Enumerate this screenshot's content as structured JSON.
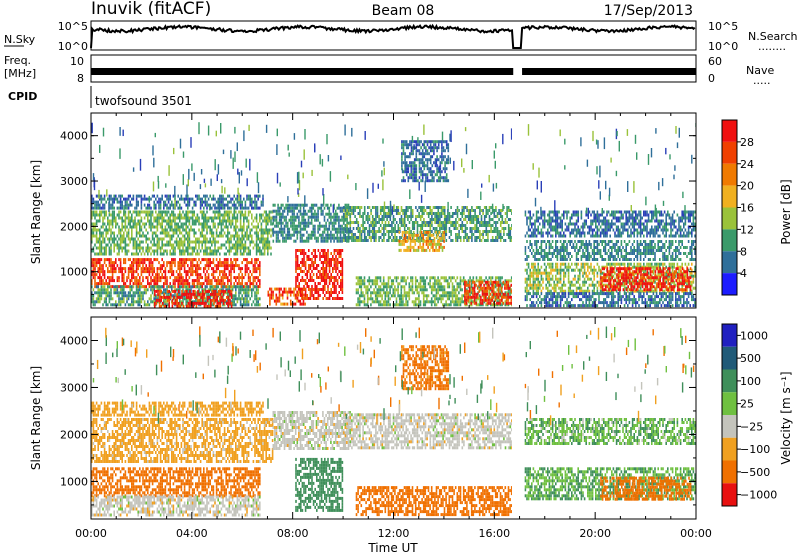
{
  "header": {
    "station": "Inuvik (fitACF)",
    "beam": "Beam 08",
    "date": "17/Sep/2013"
  },
  "top_panels": {
    "nsky": {
      "label": "N.Sky",
      "left_ticks": [
        "10^5",
        "10^0"
      ],
      "right_ticks": [
        "10^5",
        "10^0"
      ],
      "right_label": "N.Search",
      "right_label_dots": "........"
    },
    "freq": {
      "label_line1": "Freq.",
      "label_line2": "[MHz]",
      "left_ticks": [
        "10",
        "8"
      ],
      "right_ticks": [
        "60",
        "0"
      ],
      "right_label": "Nave",
      "right_label_dots": "....."
    },
    "cpid": {
      "label": "CPID",
      "value": "twofsound 3501"
    }
  },
  "panels": {
    "power": {
      "ylabel": "Slant Range [km]",
      "colorbar_label": "Power [dB]",
      "colorbar_ticks": [
        "28",
        "24",
        "20",
        "16",
        "12",
        "8",
        "4"
      ]
    },
    "velocity": {
      "ylabel": "Slant Range [km]",
      "colorbar_label": "Velocity [m s⁻¹]",
      "colorbar_ticks": [
        "1000",
        "500",
        "100",
        "25",
        "−25",
        "−100",
        "−500",
        "−1000"
      ]
    }
  },
  "chart_data": [
    {
      "type": "heatmap",
      "title": "Power",
      "x_unit": "hours UT",
      "y_unit": "km",
      "xlim": [
        0,
        24
      ],
      "ylim": [
        200,
        4500
      ],
      "xlabel": "",
      "ylabel": "Slant Range [km]",
      "x_ticks": [
        "00:00",
        "04:00",
        "08:00",
        "12:00",
        "16:00",
        "20:00",
        "00:00"
      ],
      "y_ticks": [
        1000,
        2000,
        3000,
        4000
      ],
      "colorbar": {
        "label": "Power [dB]",
        "ticks": [
          28,
          24,
          20,
          16,
          12,
          8,
          4
        ],
        "range": [
          0,
          30
        ]
      },
      "data_gap_hours": [
        16.7,
        17.2
      ],
      "regions": [
        {
          "x": [
            0,
            6.7
          ],
          "y": [
            700,
            1300
          ],
          "value": 26
        },
        {
          "x": [
            0,
            6.7
          ],
          "y": [
            300,
            700
          ],
          "value": 12
        },
        {
          "x": [
            2.5,
            5.6
          ],
          "y": [
            250,
            600
          ],
          "value": 28
        },
        {
          "x": [
            0,
            7.2
          ],
          "y": [
            1400,
            2350
          ],
          "value": 14
        },
        {
          "x": [
            0,
            6.8
          ],
          "y": [
            2400,
            2700
          ],
          "value": 8
        },
        {
          "x": [
            7.2,
            10.3
          ],
          "y": [
            1700,
            2500
          ],
          "value": 10
        },
        {
          "x": [
            8.1,
            10.0
          ],
          "y": [
            400,
            1500
          ],
          "value": 28
        },
        {
          "x": [
            7.0,
            8.5
          ],
          "y": [
            300,
            650
          ],
          "value": 25
        },
        {
          "x": [
            10.0,
            16.7
          ],
          "y": [
            1700,
            2450
          ],
          "value": 12
        },
        {
          "x": [
            12.2,
            14.0
          ],
          "y": [
            1500,
            1900
          ],
          "value": 20
        },
        {
          "x": [
            10.5,
            16.7
          ],
          "y": [
            300,
            900
          ],
          "value": 14
        },
        {
          "x": [
            14.8,
            16.7
          ],
          "y": [
            300,
            800
          ],
          "value": 26
        },
        {
          "x": [
            17.2,
            24
          ],
          "y": [
            1800,
            2350
          ],
          "value": 8
        },
        {
          "x": [
            17.2,
            24
          ],
          "y": [
            1300,
            1700
          ],
          "value": 10
        },
        {
          "x": [
            17.2,
            24
          ],
          "y": [
            600,
            1200
          ],
          "value": 16
        },
        {
          "x": [
            20.2,
            23.8
          ],
          "y": [
            600,
            1100
          ],
          "value": 28
        },
        {
          "x": [
            17.2,
            24
          ],
          "y": [
            250,
            550
          ],
          "value": 8
        },
        {
          "x": [
            12.3,
            14.2
          ],
          "y": [
            3000,
            3900
          ],
          "value": 8
        }
      ]
    },
    {
      "type": "heatmap",
      "title": "Velocity",
      "x_unit": "hours UT",
      "y_unit": "km",
      "xlim": [
        0,
        24
      ],
      "ylim": [
        200,
        4500
      ],
      "xlabel": "Time UT",
      "ylabel": "Slant Range [km]",
      "x_ticks": [
        "00:00",
        "04:00",
        "08:00",
        "12:00",
        "16:00",
        "20:00",
        "00:00"
      ],
      "y_ticks": [
        1000,
        2000,
        3000,
        4000
      ],
      "colorbar": {
        "label": "Velocity [m s⁻¹]",
        "ticks": [
          1000,
          500,
          100,
          25,
          -25,
          -100,
          -500,
          -1000
        ]
      },
      "data_gap_hours": [
        16.7,
        17.2
      ],
      "regions": [
        {
          "x": [
            0,
            6.7
          ],
          "y": [
            700,
            1300
          ],
          "value": -300
        },
        {
          "x": [
            0,
            6.7
          ],
          "y": [
            300,
            700
          ],
          "value": 0
        },
        {
          "x": [
            0,
            7.2
          ],
          "y": [
            1400,
            2350
          ],
          "value": -50
        },
        {
          "x": [
            0,
            6.8
          ],
          "y": [
            2400,
            2700
          ],
          "value": -60
        },
        {
          "x": [
            7.2,
            10.3
          ],
          "y": [
            1700,
            2500
          ],
          "value": 0
        },
        {
          "x": [
            8.1,
            10.0
          ],
          "y": [
            400,
            1500
          ],
          "value": 200
        },
        {
          "x": [
            10.0,
            16.7
          ],
          "y": [
            1700,
            2450
          ],
          "value": 0
        },
        {
          "x": [
            10.5,
            16.7
          ],
          "y": [
            300,
            900
          ],
          "value": -200
        },
        {
          "x": [
            17.2,
            24
          ],
          "y": [
            1800,
            2350
          ],
          "value": 50
        },
        {
          "x": [
            17.2,
            24
          ],
          "y": [
            600,
            1300
          ],
          "value": 60
        },
        {
          "x": [
            20.2,
            23.8
          ],
          "y": [
            600,
            1100
          ],
          "value": -300
        },
        {
          "x": [
            12.3,
            14.2
          ],
          "y": [
            3000,
            3900
          ],
          "value": -150
        }
      ]
    }
  ]
}
